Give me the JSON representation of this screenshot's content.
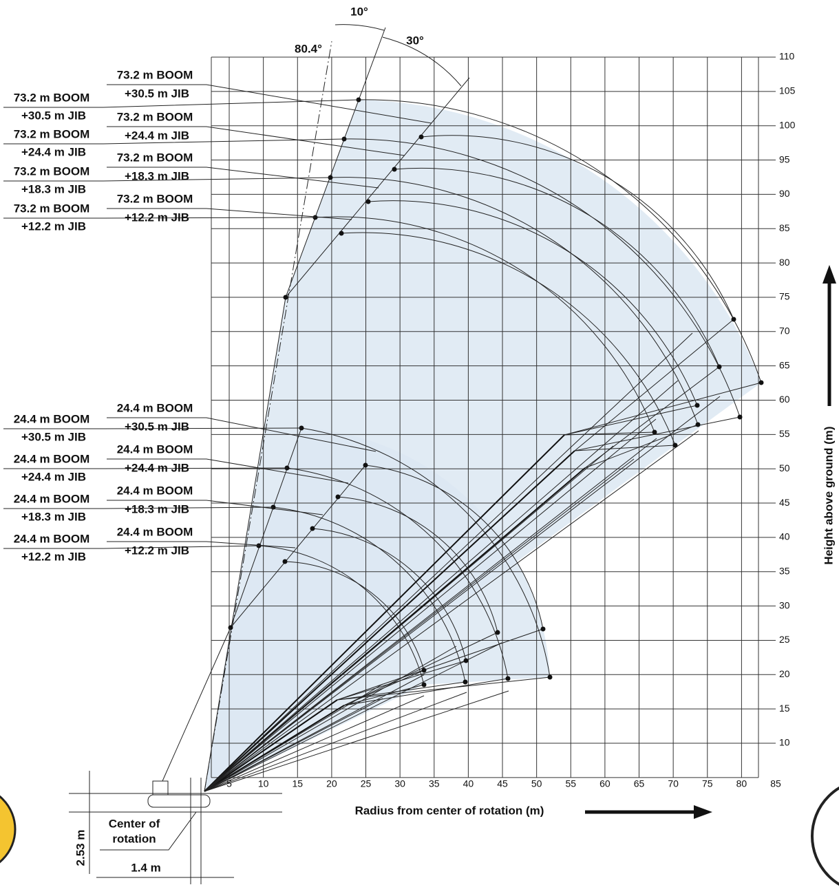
{
  "angles": {
    "boom": "80.4°",
    "offset_small": "10°",
    "offset_large": "30°"
  },
  "left_labels": [
    {
      "boom": "73.2 m BOOM",
      "jib": "+30.5 m JIB"
    },
    {
      "boom": "73.2 m BOOM",
      "jib": "+24.4 m JIB"
    },
    {
      "boom": "73.2 m BOOM",
      "jib": "+18.3 m JIB"
    },
    {
      "boom": "73.2 m BOOM",
      "jib": "+12.2 m JIB"
    },
    {
      "boom": "24.4 m BOOM",
      "jib": "+30.5 m JIB"
    },
    {
      "boom": "24.4 m BOOM",
      "jib": "+24.4 m JIB"
    },
    {
      "boom": "24.4 m BOOM",
      "jib": "+18.3 m JIB"
    },
    {
      "boom": "24.4 m BOOM",
      "jib": "+12.2 m JIB"
    }
  ],
  "right_labels": [
    {
      "boom": "73.2 m BOOM",
      "jib": "+30.5 m JIB"
    },
    {
      "boom": "73.2 m BOOM",
      "jib": "+24.4 m JIB"
    },
    {
      "boom": "73.2 m BOOM",
      "jib": "+18.3 m JIB"
    },
    {
      "boom": "73.2 m BOOM",
      "jib": "+12.2 m JIB"
    },
    {
      "boom": "24.4 m BOOM",
      "jib": "+30.5 m JIB"
    },
    {
      "boom": "24.4 m BOOM",
      "jib": "+24.4 m JIB"
    },
    {
      "boom": "24.4 m BOOM",
      "jib": "+18.3 m JIB"
    },
    {
      "boom": "24.4 m BOOM",
      "jib": "+12.2 m JIB"
    }
  ],
  "x_axis": {
    "title": "Radius from center of rotation (m)",
    "ticks": [
      5,
      10,
      15,
      20,
      25,
      30,
      35,
      40,
      45,
      50,
      55,
      60,
      65,
      70,
      75,
      80,
      85
    ]
  },
  "y_axis": {
    "title": "Height above ground (m)",
    "ticks": [
      10,
      15,
      20,
      25,
      30,
      35,
      40,
      45,
      50,
      55,
      60,
      65,
      70,
      75,
      80,
      85,
      90,
      95,
      100,
      105,
      110
    ]
  },
  "dimensions": {
    "center_label": [
      "Center of",
      "rotation"
    ],
    "height": "2.53 m",
    "offset": "1.4 m"
  }
}
